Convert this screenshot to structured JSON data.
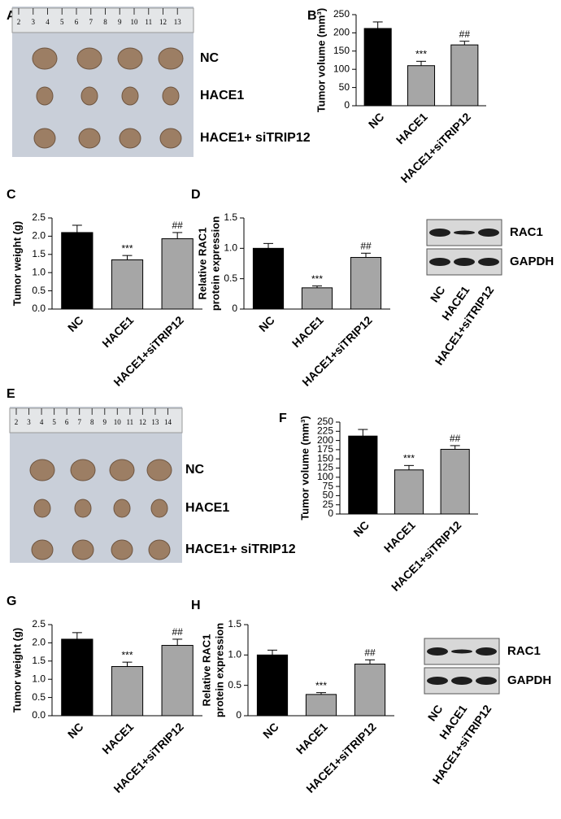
{
  "chart_data": [
    {
      "type": "bar",
      "panel": "B",
      "ylabel": "Tumor volume (mm³)",
      "categories": [
        "NC",
        "HACE1",
        "HACE1+siTRIP12"
      ],
      "values": [
        212,
        110,
        167
      ],
      "errors": [
        18,
        12,
        10
      ],
      "annotations": [
        null,
        "***",
        "##"
      ],
      "colors": [
        "#000000",
        "#a6a6a6",
        "#a6a6a6"
      ],
      "ylim": [
        0,
        250
      ],
      "yticks": [
        0,
        50,
        100,
        150,
        200,
        250
      ]
    },
    {
      "type": "bar",
      "panel": "C",
      "ylabel": "Tumor weight (g)",
      "categories": [
        "NC",
        "HACE1",
        "HACE1+siTRIP12"
      ],
      "values": [
        2.1,
        1.35,
        1.93
      ],
      "errors": [
        0.2,
        0.12,
        0.17
      ],
      "annotations": [
        null,
        "***",
        "##"
      ],
      "colors": [
        "#000000",
        "#a6a6a6",
        "#a6a6a6"
      ],
      "ylim": [
        0,
        2.5
      ],
      "yticks": [
        {
          "value": 0,
          "label": "0.0"
        },
        0.5,
        {
          "value": 1,
          "label": "1.0"
        },
        1.5,
        {
          "value": 2,
          "label": "2.0"
        },
        2.5
      ]
    },
    {
      "type": "bar",
      "panel": "D",
      "ylabel": [
        "Relative RAC1",
        "protein expression"
      ],
      "categories": [
        "NC",
        "HACE1",
        "HACE1+siTRIP12"
      ],
      "values": [
        1.0,
        0.35,
        0.85
      ],
      "errors": [
        0.08,
        0.03,
        0.07
      ],
      "annotations": [
        null,
        "***",
        "##"
      ],
      "colors": [
        "#000000",
        "#a6a6a6",
        "#a6a6a6"
      ],
      "ylim": [
        0,
        1.5
      ],
      "yticks": [
        0,
        0.5,
        {
          "value": 1,
          "label": "1.0"
        },
        1.5
      ]
    },
    {
      "type": "bar",
      "panel": "F",
      "ylabel": "Tumor volume (mm³)",
      "categories": [
        "NC",
        "HACE1",
        "HACE1+siTRIP12"
      ],
      "values": [
        212,
        120,
        176
      ],
      "errors": [
        18,
        12,
        10
      ],
      "annotations": [
        null,
        "***",
        "##"
      ],
      "colors": [
        "#000000",
        "#a6a6a6",
        "#a6a6a6"
      ],
      "ylim": [
        0,
        250
      ],
      "yticks": [
        0,
        25,
        50,
        75,
        100,
        125,
        150,
        175,
        200,
        225,
        250
      ]
    },
    {
      "type": "bar",
      "panel": "G",
      "ylabel": "Tumor weight (g)",
      "categories": [
        "NC",
        "HACE1",
        "HACE1+siTRIP12"
      ],
      "values": [
        2.1,
        1.35,
        1.93
      ],
      "errors": [
        0.18,
        0.12,
        0.17
      ],
      "annotations": [
        null,
        "***",
        "##"
      ],
      "colors": [
        "#000000",
        "#a6a6a6",
        "#a6a6a6"
      ],
      "ylim": [
        0,
        2.5
      ],
      "yticks": [
        {
          "value": 0,
          "label": "0.0"
        },
        0.5,
        {
          "value": 1,
          "label": "1.0"
        },
        1.5,
        {
          "value": 2,
          "label": "2.0"
        },
        2.5
      ]
    },
    {
      "type": "bar",
      "panel": "H",
      "ylabel": [
        "Relative RAC1",
        "protein expression"
      ],
      "categories": [
        "NC",
        "HACE1",
        "HACE1+siTRIP12"
      ],
      "values": [
        1.0,
        0.35,
        0.85
      ],
      "errors": [
        0.08,
        0.03,
        0.07
      ],
      "annotations": [
        null,
        "***",
        "##"
      ],
      "colors": [
        "#000000",
        "#a6a6a6",
        "#a6a6a6"
      ],
      "ylim": [
        0,
        1.5
      ],
      "yticks": [
        0,
        0.5,
        {
          "value": 1,
          "label": "1.0"
        },
        1.5
      ]
    }
  ],
  "photos": [
    {
      "panel": "A",
      "ruler": [
        2,
        3,
        4,
        5,
        6,
        7,
        8,
        9,
        10,
        11,
        12,
        13
      ],
      "labels": [
        "NC",
        "HACE1",
        "HACE1+ siTRIP12"
      ]
    },
    {
      "panel": "E",
      "ruler": [
        2,
        3,
        4,
        5,
        6,
        7,
        8,
        9,
        10,
        11,
        12,
        13,
        14
      ],
      "labels": [
        "NC",
        "HACE1",
        "HACE1+ siTRIP12"
      ]
    }
  ],
  "blots": [
    {
      "bands": [
        "RAC1",
        "GAPDH"
      ],
      "lanes": [
        "NC",
        "HACE1",
        "HACE1+siTRIP12"
      ]
    },
    {
      "bands": [
        "RAC1",
        "GAPDH"
      ],
      "lanes": [
        "NC",
        "HACE1",
        "HACE1+siTRIP12"
      ]
    }
  ]
}
